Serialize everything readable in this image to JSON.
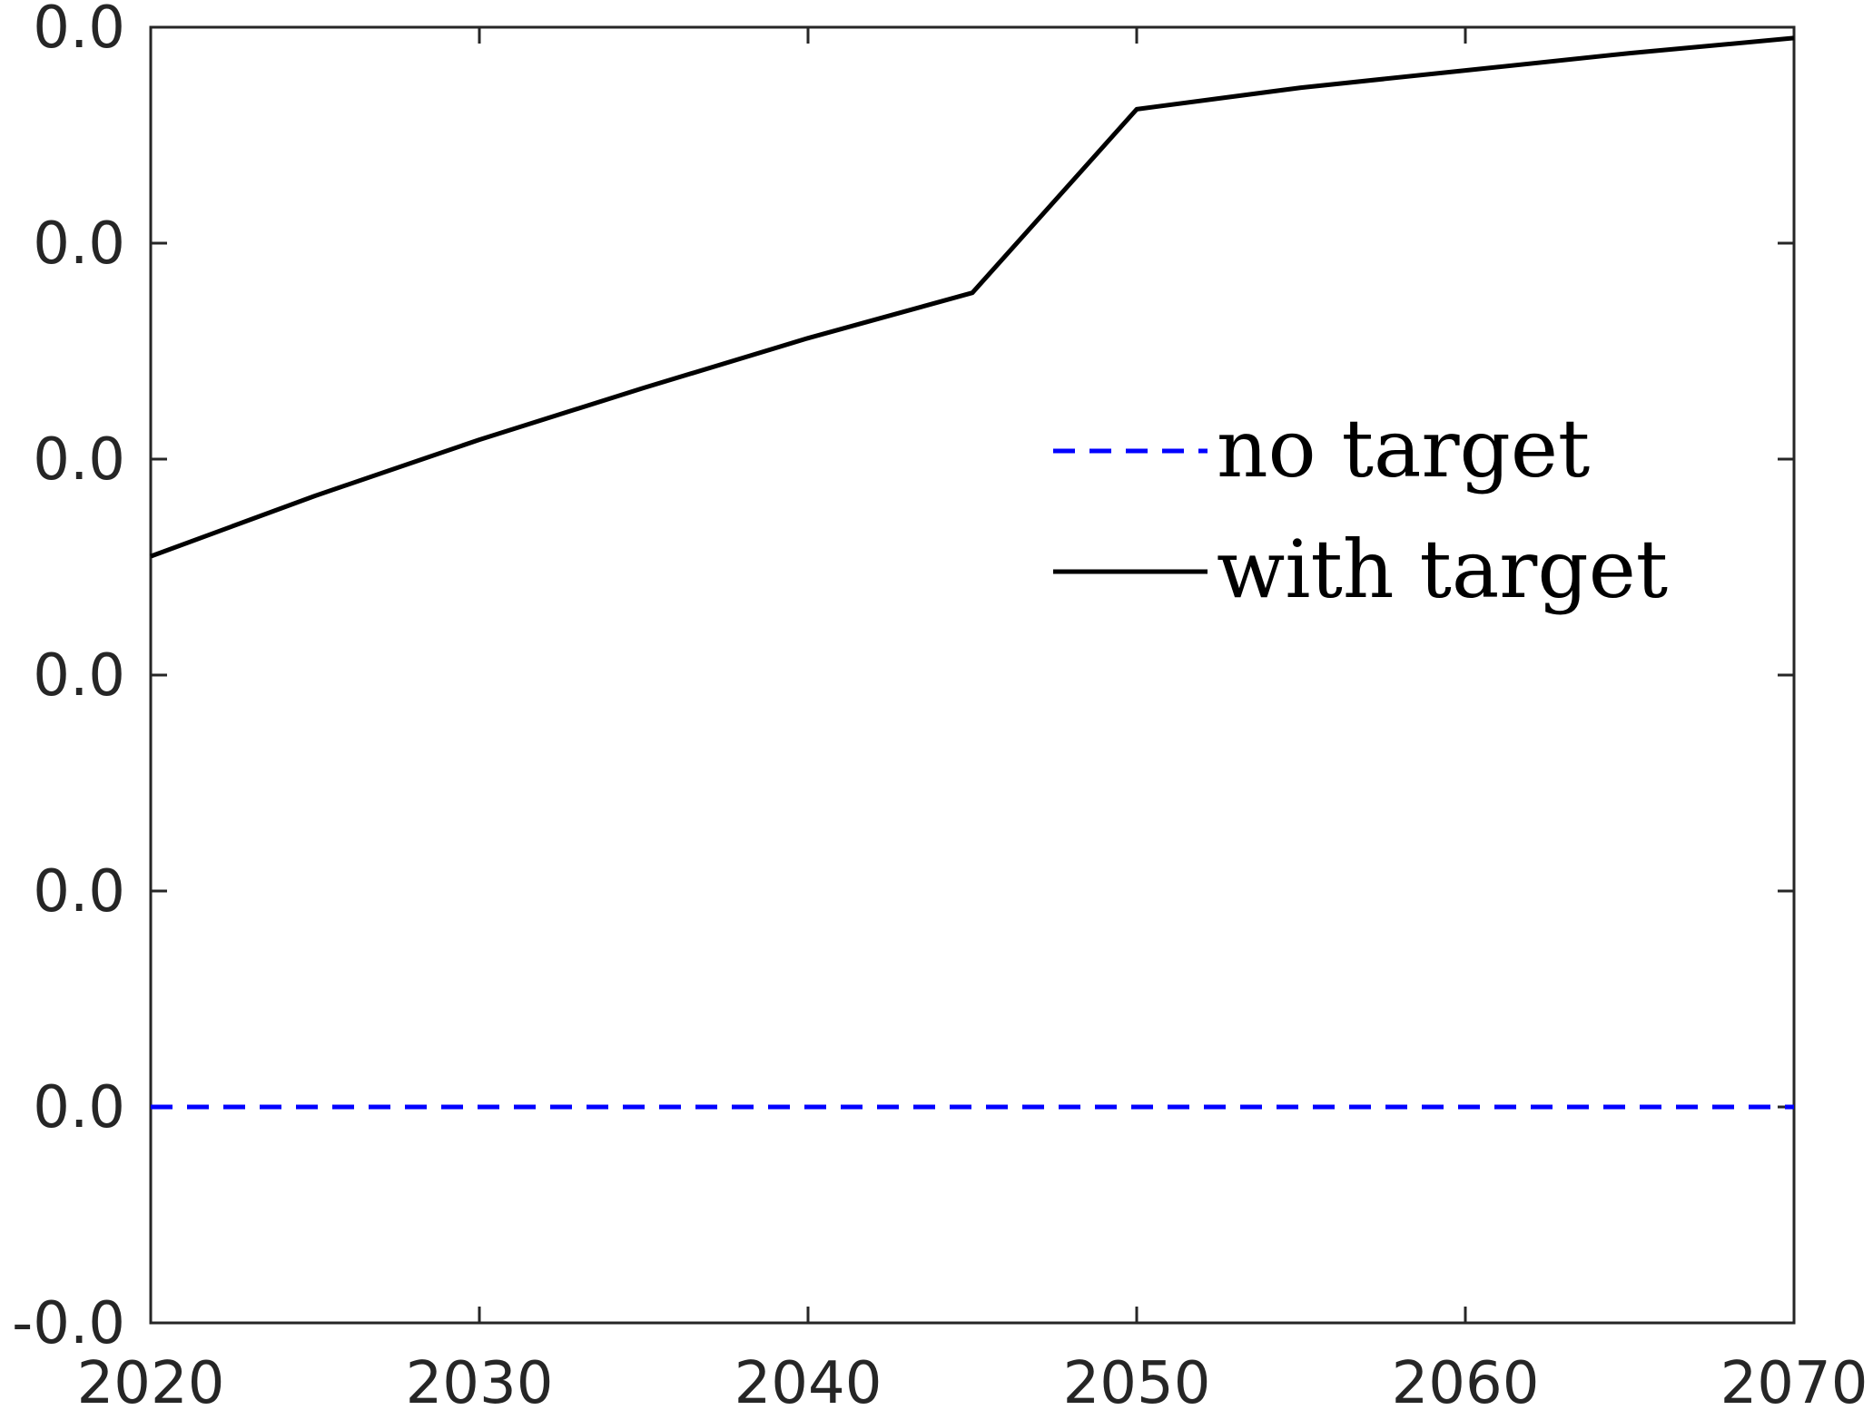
{
  "chart_data": {
    "type": "line",
    "title": "",
    "xlabel": "",
    "ylabel": "",
    "xlim": [
      2020,
      2070
    ],
    "x_ticks": [
      "2020",
      "2030",
      "2040",
      "2050",
      "2060",
      "2070"
    ],
    "y_tick_labels": [
      "-0.0",
      "0.0",
      "0.0",
      "0.0",
      "0.0",
      "0.0",
      "0.0"
    ],
    "ylim_relative": [
      0,
      6
    ],
    "grid": false,
    "legend_position": "upper-right-center",
    "series": [
      {
        "name": "no target",
        "color": "#0000ff",
        "style": "dashed",
        "x": [
          2020,
          2070
        ],
        "y": [
          1.0,
          1.0
        ]
      },
      {
        "name": "with target",
        "color": "#000000",
        "style": "solid",
        "x": [
          2020,
          2025,
          2030,
          2035,
          2040,
          2045,
          2050,
          2055,
          2060,
          2065,
          2070
        ],
        "y": [
          3.55,
          3.83,
          4.09,
          4.33,
          4.56,
          4.77,
          5.62,
          5.72,
          5.8,
          5.88,
          5.95
        ]
      }
    ]
  }
}
